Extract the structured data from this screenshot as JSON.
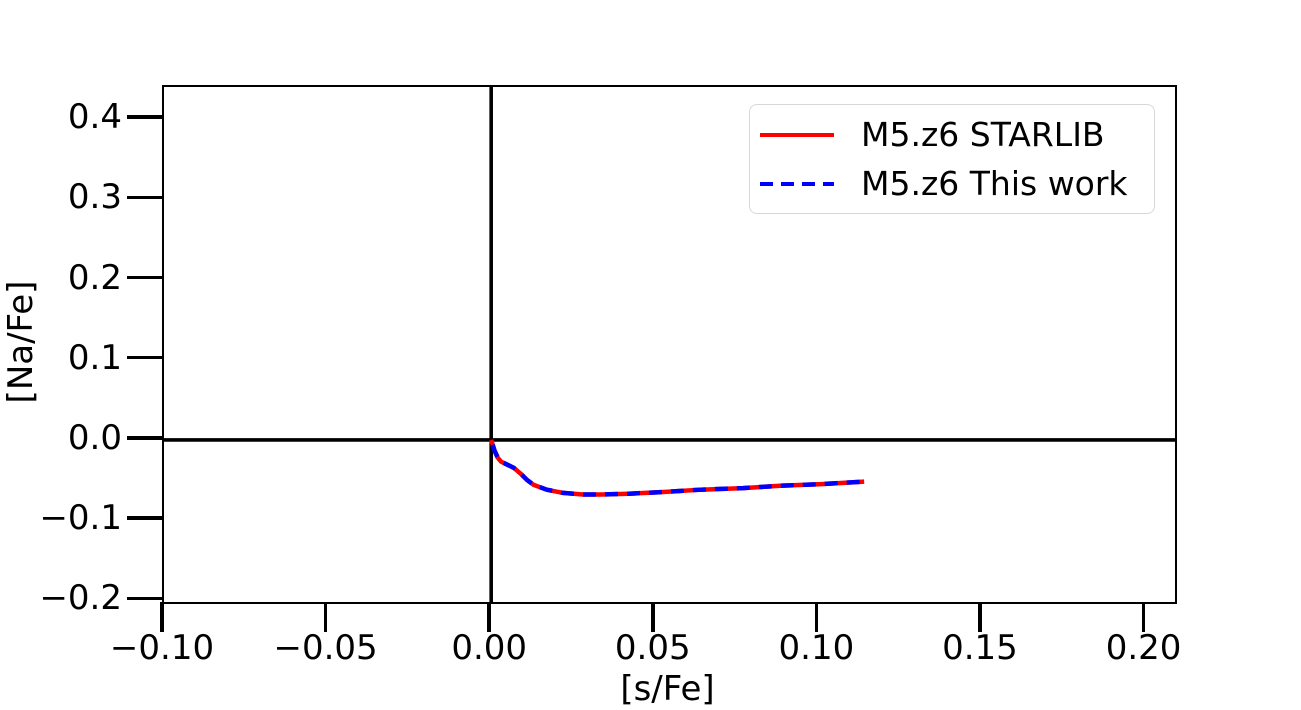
{
  "figure": {
    "background": "#ffffff",
    "frame_color": "#000000"
  },
  "chart_data": {
    "type": "line",
    "title": "",
    "xlabel": "[s/Fe]",
    "ylabel": "[Na/Fe]",
    "xlim": [
      -0.1,
      0.209
    ],
    "ylim": [
      -0.202,
      0.44
    ],
    "grid": false,
    "zero_lines": {
      "horizontal_y": 0.0,
      "vertical_x": 0.0,
      "color": "#000000"
    },
    "xticks": {
      "values": [
        -0.1,
        -0.05,
        0.0,
        0.05,
        0.1,
        0.15,
        0.2
      ],
      "labels": [
        "−0.10",
        "−0.05",
        "0.00",
        "0.05",
        "0.10",
        "0.15",
        "0.20"
      ]
    },
    "yticks": {
      "values": [
        0.4,
        0.3,
        0.2,
        0.1,
        0.0,
        -0.1,
        -0.2
      ],
      "labels": [
        "0.4",
        "0.3",
        "0.2",
        "0.1",
        "0.0",
        "−0.1",
        "−0.2"
      ]
    },
    "legend": {
      "position": "upper right"
    },
    "series": [
      {
        "name": "M5.z6 STARLIB",
        "color": "#ff0000",
        "style": "solid",
        "x": [
          0.0,
          0.001,
          0.002,
          0.003,
          0.005,
          0.007,
          0.009,
          0.011,
          0.013,
          0.017,
          0.022,
          0.028,
          0.034,
          0.042,
          0.052,
          0.064,
          0.077,
          0.089,
          0.101,
          0.114
        ],
        "y": [
          0.0,
          -0.013,
          -0.022,
          -0.027,
          -0.031,
          -0.035,
          -0.042,
          -0.05,
          -0.056,
          -0.062,
          -0.066,
          -0.068,
          -0.068,
          -0.067,
          -0.065,
          -0.062,
          -0.06,
          -0.057,
          -0.055,
          -0.052
        ]
      },
      {
        "name": "M5.z6 This work",
        "color": "#0000ff",
        "style": "dashed",
        "x": [
          0.0,
          0.001,
          0.002,
          0.003,
          0.005,
          0.007,
          0.009,
          0.011,
          0.013,
          0.017,
          0.022,
          0.028,
          0.034,
          0.042,
          0.052,
          0.064,
          0.077,
          0.089,
          0.101,
          0.114
        ],
        "y": [
          0.0,
          -0.013,
          -0.022,
          -0.027,
          -0.031,
          -0.035,
          -0.042,
          -0.05,
          -0.056,
          -0.062,
          -0.066,
          -0.068,
          -0.068,
          -0.067,
          -0.065,
          -0.062,
          -0.06,
          -0.057,
          -0.055,
          -0.052
        ]
      }
    ]
  }
}
